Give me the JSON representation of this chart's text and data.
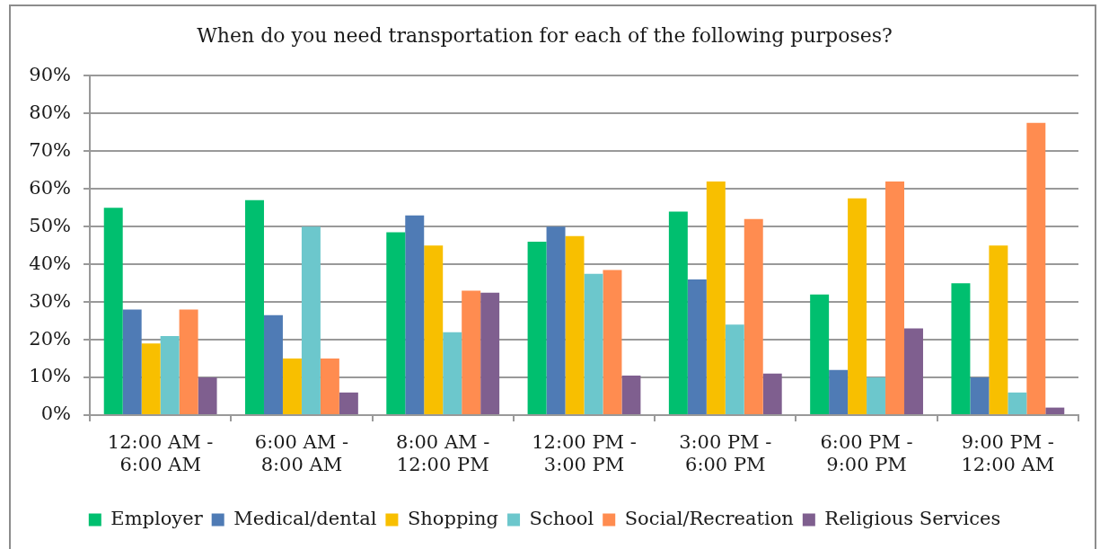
{
  "chart_data": {
    "type": "bar",
    "title": "When do you need transportation for each of the following purposes?",
    "categories": [
      "12:00 AM - 6:00 AM",
      "6:00 AM - 8:00 AM",
      "8:00 AM - 12:00 PM",
      "12:00 PM - 3:00 PM",
      "3:00 PM - 6:00 PM",
      "6:00 PM - 9:00 PM",
      "9:00 PM - 12:00 AM"
    ],
    "series": [
      {
        "name": "Employer",
        "color": "#00bf6f",
        "values": [
          55,
          57,
          48.5,
          46,
          54,
          32,
          35
        ]
      },
      {
        "name": "Medical/dental",
        "color": "#4f7bb5",
        "values": [
          28,
          26.5,
          53,
          50,
          36,
          12,
          10
        ]
      },
      {
        "name": "Shopping",
        "color": "#f8bf00",
        "values": [
          19,
          15,
          45,
          47.5,
          62,
          57.5,
          45
        ]
      },
      {
        "name": "School",
        "color": "#6cc7cc",
        "values": [
          21,
          50,
          22,
          37.5,
          24,
          10,
          6
        ]
      },
      {
        "name": "Social/Recreation",
        "color": "#ff8c50",
        "values": [
          28,
          15,
          33,
          38.5,
          52,
          62,
          77.5
        ]
      },
      {
        "name": "Religious Services",
        "color": "#7f5f8f",
        "values": [
          10,
          6,
          32.5,
          10.5,
          11,
          23,
          2
        ]
      }
    ],
    "ylim": [
      0,
      90
    ],
    "yticks": [
      {
        "value": 0,
        "label": "0%"
      },
      {
        "value": 10,
        "label": "10%"
      },
      {
        "value": 20,
        "label": "20%"
      },
      {
        "value": 30,
        "label": "30%"
      },
      {
        "value": 40,
        "label": "40%"
      },
      {
        "value": 50,
        "label": "50%"
      },
      {
        "value": 60,
        "label": "60%"
      },
      {
        "value": 70,
        "label": "70%"
      },
      {
        "value": 80,
        "label": "80%"
      },
      {
        "value": 90,
        "label": "90%"
      }
    ],
    "grid": "y",
    "legend": "bottom"
  }
}
